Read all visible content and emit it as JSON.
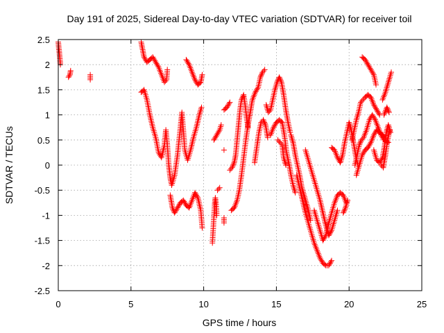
{
  "chart_data": {
    "type": "scatter",
    "title": "Day 191 of 2025, Sidereal Day-to-day VTEC variation (SDTVAR) for receiver toil",
    "xlabel": "GPS time / hours",
    "ylabel": "SDTVAR / TECUs",
    "xlim": [
      0,
      25
    ],
    "ylim": [
      -2.5,
      2.5
    ],
    "xticks": [
      0,
      5,
      10,
      15,
      20,
      25
    ],
    "yticks": [
      -2.5,
      -2,
      -1.5,
      -1,
      -0.5,
      0,
      0.5,
      1,
      1.5,
      2,
      2.5
    ],
    "grid": true,
    "marker": "plus",
    "marker_color": "#ff0000",
    "series": [
      {
        "name": "",
        "traces": [
          [
            [
              0.0,
              2.45
            ],
            [
              0.05,
              2.3
            ],
            [
              0.1,
              2.15
            ],
            [
              0.15,
              2.0
            ]
          ],
          [
            [
              0.7,
              1.75
            ],
            [
              0.8,
              1.8
            ],
            [
              0.85,
              1.88
            ]
          ],
          [
            [
              2.2,
              1.7
            ],
            [
              2.2,
              1.8
            ]
          ],
          [
            [
              5.7,
              2.45
            ],
            [
              5.8,
              2.3
            ],
            [
              5.9,
              2.15
            ],
            [
              6.1,
              2.05
            ],
            [
              6.3,
              2.1
            ],
            [
              6.5,
              2.15
            ],
            [
              6.7,
              2.05
            ],
            [
              6.9,
              1.95
            ],
            [
              7.1,
              1.8
            ],
            [
              7.3,
              1.65
            ],
            [
              7.45,
              1.7
            ],
            [
              7.5,
              1.9
            ]
          ],
          [
            [
              5.7,
              1.45
            ],
            [
              5.9,
              1.5
            ],
            [
              6.1,
              1.3
            ],
            [
              6.3,
              1.0
            ],
            [
              6.5,
              0.75
            ],
            [
              6.7,
              0.55
            ],
            [
              6.9,
              0.25
            ],
            [
              7.1,
              0.15
            ],
            [
              7.3,
              0.4
            ],
            [
              7.4,
              0.7
            ],
            [
              7.5,
              0.4
            ],
            [
              7.6,
              0.0
            ],
            [
              7.7,
              -0.25
            ],
            [
              7.8,
              -0.4
            ],
            [
              8.0,
              -0.2
            ],
            [
              8.2,
              0.2
            ],
            [
              8.4,
              0.75
            ],
            [
              8.5,
              1.05
            ],
            [
              8.6,
              0.7
            ],
            [
              8.7,
              0.3
            ],
            [
              8.9,
              0.1
            ],
            [
              9.1,
              0.3
            ],
            [
              9.3,
              0.55
            ],
            [
              9.5,
              0.75
            ],
            [
              9.7,
              1.0
            ],
            [
              9.85,
              1.15
            ]
          ],
          [
            [
              7.7,
              -0.6
            ],
            [
              7.85,
              -0.85
            ],
            [
              8.0,
              -0.95
            ],
            [
              8.2,
              -0.85
            ],
            [
              8.4,
              -0.75
            ],
            [
              8.6,
              -0.7
            ],
            [
              8.8,
              -0.8
            ],
            [
              9.0,
              -0.85
            ],
            [
              9.2,
              -0.7
            ],
            [
              9.4,
              -0.55
            ],
            [
              9.6,
              -0.65
            ],
            [
              9.8,
              -0.9
            ],
            [
              9.9,
              -1.25
            ]
          ],
          [
            [
              8.8,
              2.1
            ],
            [
              9.0,
              2.0
            ],
            [
              9.2,
              1.85
            ],
            [
              9.4,
              1.7
            ],
            [
              9.6,
              1.6
            ],
            [
              9.8,
              1.65
            ],
            [
              9.9,
              1.8
            ]
          ],
          [
            [
              10.6,
              -1.55
            ],
            [
              10.65,
              -1.3
            ],
            [
              10.7,
              -1.05
            ],
            [
              10.75,
              -0.8
            ],
            [
              10.8,
              -0.65
            ],
            [
              10.85,
              -0.75
            ],
            [
              10.9,
              -1.0
            ]
          ],
          [
            [
              10.7,
              0.5
            ],
            [
              10.9,
              0.6
            ],
            [
              11.1,
              0.7
            ],
            [
              11.2,
              0.8
            ]
          ],
          [
            [
              11.1,
              -0.45
            ],
            [
              10.95,
              -0.5
            ]
          ],
          [
            [
              11.4,
              -1.15
            ],
            [
              11.4,
              -1.05
            ]
          ],
          [
            [
              11.4,
              0.3
            ]
          ],
          [
            [
              11.4,
              1.1
            ],
            [
              11.6,
              1.15
            ],
            [
              11.8,
              1.25
            ]
          ],
          [
            [
              11.8,
              -0.1
            ],
            [
              11.95,
              -0.05
            ],
            [
              12.1,
              0.05
            ],
            [
              12.2,
              0.2
            ],
            [
              12.3,
              0.5
            ],
            [
              12.4,
              0.8
            ],
            [
              12.5,
              1.1
            ],
            [
              12.6,
              1.3
            ],
            [
              12.75,
              1.4
            ],
            [
              12.85,
              1.2
            ],
            [
              12.95,
              0.95
            ],
            [
              13.05,
              0.75
            ]
          ],
          [
            [
              11.9,
              -0.9
            ],
            [
              12.1,
              -0.85
            ],
            [
              12.3,
              -0.7
            ],
            [
              12.45,
              -0.5
            ],
            [
              12.6,
              -0.2
            ],
            [
              12.75,
              0.15
            ],
            [
              12.9,
              0.5
            ],
            [
              13.05,
              0.8
            ],
            [
              13.2,
              1.05
            ],
            [
              13.35,
              1.3
            ],
            [
              13.55,
              1.45
            ],
            [
              13.75,
              1.55
            ],
            [
              13.9,
              1.75
            ],
            [
              14.05,
              1.85
            ],
            [
              14.2,
              1.9
            ]
          ],
          [
            [
              13.5,
              0.05
            ],
            [
              13.65,
              0.35
            ],
            [
              13.8,
              0.65
            ],
            [
              13.95,
              0.85
            ],
            [
              14.1,
              0.9
            ],
            [
              14.25,
              0.8
            ],
            [
              14.4,
              0.55
            ]
          ],
          [
            [
              14.3,
              1.2
            ],
            [
              14.45,
              1.05
            ],
            [
              14.6,
              1.1
            ],
            [
              14.75,
              1.3
            ],
            [
              14.9,
              1.5
            ],
            [
              15.05,
              1.65
            ],
            [
              15.2,
              1.75
            ],
            [
              15.35,
              1.65
            ],
            [
              15.5,
              1.4
            ],
            [
              15.65,
              1.1
            ],
            [
              15.8,
              0.85
            ],
            [
              15.95,
              0.65
            ]
          ],
          [
            [
              14.6,
              0.6
            ],
            [
              14.8,
              0.75
            ],
            [
              15.0,
              0.85
            ],
            [
              15.2,
              0.9
            ],
            [
              15.4,
              0.85
            ],
            [
              15.55,
              0.6
            ],
            [
              15.7,
              0.25
            ],
            [
              15.85,
              0.05
            ],
            [
              16.0,
              -0.2
            ],
            [
              16.15,
              -0.4
            ],
            [
              16.3,
              -0.55
            ]
          ],
          [
            [
              15.1,
              0.5
            ],
            [
              15.25,
              0.45
            ],
            [
              15.4,
              0.4
            ],
            [
              15.5,
              0.15
            ],
            [
              15.65,
              0.0
            ]
          ],
          [
            [
              16.0,
              0.6
            ],
            [
              16.15,
              0.45
            ],
            [
              16.3,
              0.2
            ],
            [
              16.45,
              0.0
            ],
            [
              16.6,
              -0.2
            ],
            [
              16.75,
              -0.45
            ],
            [
              16.9,
              -0.6
            ],
            [
              17.05,
              -0.75
            ],
            [
              17.2,
              -0.9
            ],
            [
              17.35,
              -1.1
            ]
          ],
          [
            [
              16.4,
              -0.2
            ],
            [
              16.6,
              -0.45
            ],
            [
              16.8,
              -0.7
            ],
            [
              17.0,
              -0.95
            ],
            [
              17.2,
              -1.15
            ],
            [
              17.4,
              -1.35
            ],
            [
              17.6,
              -1.55
            ],
            [
              17.8,
              -1.7
            ],
            [
              18.0,
              -1.85
            ],
            [
              18.2,
              -1.95
            ],
            [
              18.4,
              -2.0
            ],
            [
              18.6,
              -2.0
            ],
            [
              18.8,
              -1.9
            ]
          ],
          [
            [
              17.0,
              0.3
            ],
            [
              17.2,
              0.1
            ],
            [
              17.4,
              -0.1
            ],
            [
              17.6,
              -0.3
            ],
            [
              17.8,
              -0.5
            ],
            [
              18.0,
              -0.7
            ],
            [
              18.2,
              -0.95
            ],
            [
              18.4,
              -1.2
            ],
            [
              18.6,
              -1.4
            ],
            [
              18.8,
              -1.3
            ],
            [
              19.0,
              -1.1
            ],
            [
              19.2,
              -0.9
            ]
          ],
          [
            [
              17.6,
              -0.9
            ],
            [
              17.8,
              -1.1
            ],
            [
              18.0,
              -1.3
            ],
            [
              18.2,
              -1.5
            ],
            [
              18.4,
              -1.4
            ],
            [
              18.6,
              -1.15
            ],
            [
              18.8,
              -0.95
            ],
            [
              19.0,
              -0.75
            ],
            [
              19.2,
              -0.6
            ],
            [
              19.4,
              -0.55
            ],
            [
              19.6,
              -0.6
            ],
            [
              19.8,
              -0.75
            ]
          ],
          [
            [
              18.8,
              0.35
            ],
            [
              19.0,
              0.3
            ],
            [
              19.2,
              0.15
            ],
            [
              19.4,
              0.05
            ],
            [
              19.55,
              0.2
            ],
            [
              19.7,
              0.45
            ],
            [
              19.85,
              0.65
            ],
            [
              20.0,
              0.85
            ],
            [
              20.15,
              0.7
            ],
            [
              20.3,
              0.45
            ],
            [
              20.45,
              0.2
            ],
            [
              20.6,
              0.0
            ]
          ],
          [
            [
              19.6,
              -0.95
            ],
            [
              19.75,
              -0.85
            ],
            [
              19.9,
              -0.7
            ]
          ],
          [
            [
              20.2,
              0.5
            ],
            [
              20.35,
              0.7
            ],
            [
              20.5,
              0.9
            ],
            [
              20.65,
              1.05
            ],
            [
              20.8,
              1.25
            ],
            [
              20.95,
              1.3
            ],
            [
              21.1,
              1.35
            ],
            [
              21.3,
              1.4
            ],
            [
              21.5,
              1.35
            ],
            [
              21.7,
              1.2
            ],
            [
              21.9,
              1.1
            ],
            [
              22.1,
              1.0
            ]
          ],
          [
            [
              20.4,
              0.0
            ],
            [
              20.55,
              0.2
            ],
            [
              20.7,
              0.4
            ],
            [
              20.85,
              0.5
            ],
            [
              21.0,
              0.55
            ],
            [
              21.2,
              0.7
            ],
            [
              21.4,
              0.9
            ],
            [
              21.6,
              1.0
            ],
            [
              21.8,
              0.9
            ],
            [
              22.0,
              0.75
            ],
            [
              22.2,
              0.6
            ],
            [
              22.4,
              0.5
            ]
          ],
          [
            [
              20.5,
              -0.2
            ],
            [
              20.7,
              0.0
            ],
            [
              20.9,
              0.2
            ],
            [
              21.1,
              0.3
            ],
            [
              21.3,
              0.35
            ],
            [
              21.5,
              0.45
            ],
            [
              21.7,
              0.6
            ],
            [
              21.9,
              0.7
            ],
            [
              22.1,
              0.65
            ],
            [
              22.3,
              0.6
            ],
            [
              22.5,
              0.5
            ],
            [
              22.7,
              0.45
            ]
          ],
          [
            [
              20.9,
              2.15
            ],
            [
              21.1,
              2.1
            ],
            [
              21.3,
              2.0
            ],
            [
              21.5,
              1.9
            ],
            [
              21.7,
              1.8
            ],
            [
              21.85,
              1.6
            ]
          ],
          [
            [
              21.7,
              0.3
            ],
            [
              21.9,
              0.1
            ],
            [
              22.1,
              0.05
            ],
            [
              22.3,
              0.15
            ],
            [
              22.45,
              0.4
            ],
            [
              22.55,
              0.65
            ],
            [
              22.7,
              0.8
            ],
            [
              22.85,
              0.65
            ]
          ],
          [
            [
              22.3,
              1.3
            ],
            [
              22.5,
              1.45
            ],
            [
              22.65,
              1.6
            ],
            [
              22.8,
              1.75
            ],
            [
              22.9,
              1.85
            ]
          ],
          [
            [
              22.2,
              0.0
            ],
            [
              22.35,
              -0.05
            ],
            [
              22.5,
              0.2
            ],
            [
              22.65,
              0.5
            ],
            [
              22.8,
              0.7
            ]
          ],
          [
            [
              22.4,
              1.0
            ],
            [
              22.6,
              1.15
            ],
            [
              22.75,
              1.05
            ]
          ]
        ]
      }
    ]
  }
}
